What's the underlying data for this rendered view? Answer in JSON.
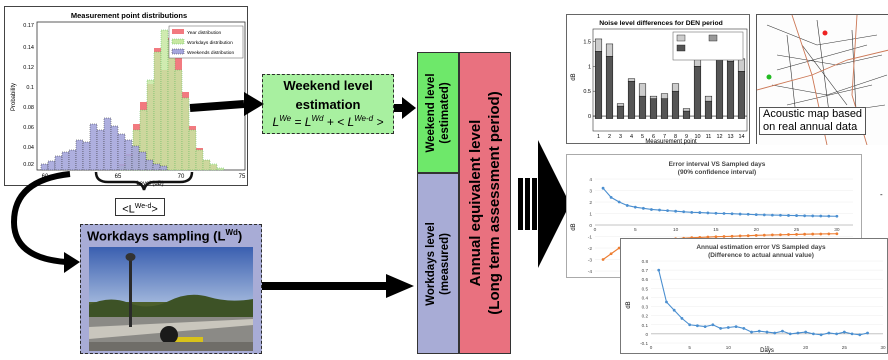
{
  "hist": {
    "title": "Measurement point distributions",
    "ylabel": "Probability",
    "xlabel": "Level (dB)",
    "yticks": [
      "0.17",
      "0.14",
      "0.12",
      "0.1",
      "0.08",
      "0.06",
      "0.04",
      "0.02"
    ],
    "xticks": [
      "60",
      "65",
      "70",
      "75"
    ],
    "legend": [
      "Year distribution",
      "Workdays distribution",
      "Weekends distribution"
    ],
    "colors": {
      "year": "#f27a80",
      "workdays": "#c7e8a2",
      "weekends": "#a5a6dc"
    }
  },
  "brace_label": "<L",
  "brace_sup": "We-d",
  "brace_close": ">",
  "weekend_box": {
    "title_line1": "Weekend level",
    "title_line2": "estimation",
    "formula": "L = L + < L >",
    "sup1": "We",
    "sup2": "Wd",
    "sup3": "We-d"
  },
  "workdays_box": {
    "title": "Workdays sampling (L",
    "title_sup": "Wd",
    "title_close": ")"
  },
  "center": {
    "weekend_level": "Weekend level",
    "weekend_estimated": "(estimated)",
    "workdays_level": "Workdays level",
    "workdays_measured": "(measured)",
    "annual_line1": "Annual equivalent level",
    "annual_line2": "(Long term assessment period)"
  },
  "den_chart": {
    "title": "Noise level differences for DEN period",
    "ylabel": "dB",
    "xlabel": "Measurement point",
    "yticks": [
      "1.5",
      "1",
      "0.5",
      "0"
    ],
    "categories": [
      "1",
      "2",
      "3",
      "4",
      "5",
      "6",
      "7",
      "8",
      "9",
      "10",
      "11",
      "12",
      "13",
      "14"
    ]
  },
  "map": {
    "caption_line1": "Acoustic map based",
    "caption_line2": "on real annual data"
  },
  "error_chart": {
    "title_line1": "Error interval VS Sampled days",
    "title_line2": "(90% confidence interval)",
    "ylabel": "dB",
    "yticks": [
      "4",
      "3",
      "2",
      "1",
      "0",
      "-1",
      "-2",
      "-3",
      "-4"
    ],
    "xticks": [
      "0",
      "5",
      "10",
      "15",
      "20",
      "25",
      "30"
    ],
    "upper": [
      3.2,
      2.4,
      2.0,
      1.7,
      1.55,
      1.45,
      1.35,
      1.3,
      1.25,
      1.2,
      1.15,
      1.1,
      1.08,
      1.05,
      1.02,
      1.0,
      0.98,
      0.95,
      0.93,
      0.9,
      0.88,
      0.86,
      0.85,
      0.83,
      0.82,
      0.8,
      0.79,
      0.78,
      0.77,
      0.76
    ],
    "lower": [
      -3.0,
      -2.5,
      -2.0,
      -1.7,
      -1.55,
      -1.45,
      -1.35,
      -1.3,
      -1.25,
      -1.2,
      -1.15,
      -1.1,
      -1.08,
      -1.05,
      -1.02,
      -1.0,
      -0.98,
      -0.95,
      -0.93,
      -0.9,
      -0.88,
      -0.86,
      -0.85,
      -0.83,
      -0.82,
      -0.8,
      -0.79,
      -0.78,
      -0.77,
      -0.76
    ]
  },
  "annual_chart": {
    "title_line1": "Annual estimation error VS Sampled days",
    "title_line2": "(Difference to actual annual value)",
    "ylabel": "dB",
    "xlabel": "Days",
    "yticks": [
      "0.8",
      "0.7",
      "0.6",
      "0.5",
      "0.4",
      "0.3",
      "0.2",
      "0.1",
      "0",
      "-0.1"
    ],
    "xticks": [
      "0",
      "5",
      "10",
      "15",
      "20",
      "25",
      "30"
    ],
    "values": [
      0.7,
      0.35,
      0.26,
      0.17,
      0.1,
      0.09,
      0.08,
      0.1,
      0.06,
      0.07,
      0.08,
      0.06,
      0.02,
      0.03,
      0.02,
      0.01,
      0.03,
      0.0,
      0.01,
      0.02,
      0.0,
      -0.01,
      0.01,
      0.0,
      0.02,
      0.0,
      -0.01,
      0.01
    ],
    "color": "#4b8fd0"
  }
}
